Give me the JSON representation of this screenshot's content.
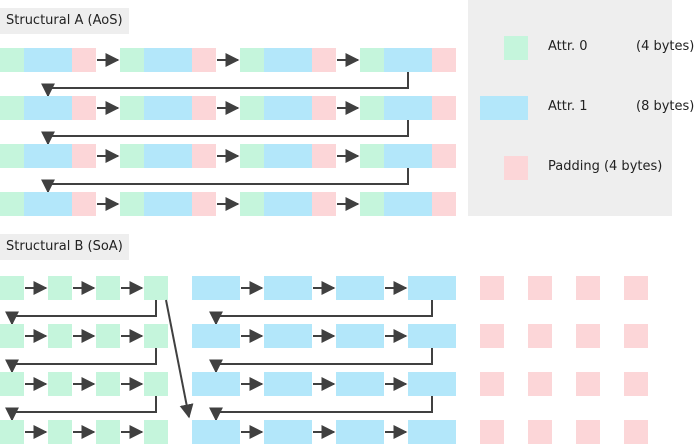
{
  "section_a": {
    "title": "Structural A (AoS)"
  },
  "section_b": {
    "title": "Structural B (SoA)"
  },
  "legend": {
    "items": [
      {
        "label": "Attr. 0",
        "size": "(4 bytes)",
        "color": "#c5f5dc"
      },
      {
        "label": "Attr. 1",
        "size": "(8 bytes)",
        "color": "#b3e7fa"
      },
      {
        "label": "Padding (4 bytes)",
        "size": "",
        "color": "#fcd6d8"
      }
    ]
  },
  "colors": {
    "attr0": "#c5f5dc",
    "attr1": "#b3e7fa",
    "padding": "#fcd6d8",
    "arrow": "#404040",
    "panel": "#eeeeee"
  }
}
